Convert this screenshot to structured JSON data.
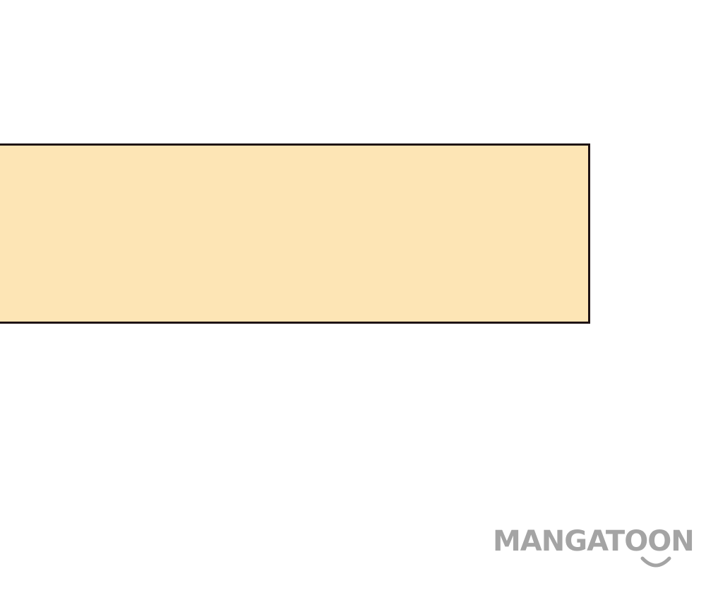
{
  "panel": {
    "fill_color": "#fde5b5",
    "border_color": "#1e1214"
  },
  "watermark": {
    "text": "MANGATOON",
    "color": "#a4a4a4",
    "icon": "smile-icon"
  }
}
